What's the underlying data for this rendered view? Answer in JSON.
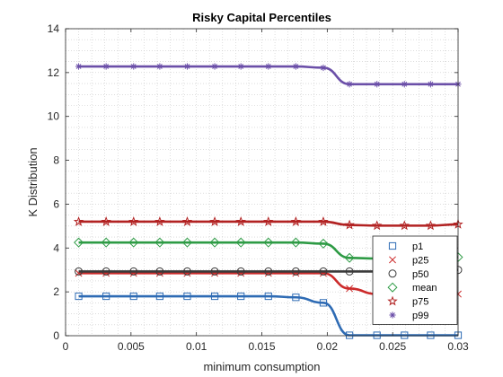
{
  "chart_data": {
    "type": "line",
    "title": "Risky Capital Percentiles",
    "xlabel": "minimum consumption",
    "ylabel": "K Distribution",
    "xlim": [
      0,
      0.03
    ],
    "ylim": [
      0,
      14
    ],
    "xticks": [
      0,
      0.005,
      0.01,
      0.015,
      0.02,
      0.025,
      0.03
    ],
    "xtick_labels": [
      "0",
      "0.005",
      "0.01",
      "0.015",
      "0.02",
      "0.025",
      "0.03"
    ],
    "yticks": [
      0,
      2,
      4,
      6,
      8,
      10,
      12,
      14
    ],
    "ytick_labels": [
      "0",
      "2",
      "4",
      "6",
      "8",
      "10",
      "12",
      "14"
    ],
    "grid": "minor-dotted",
    "legend_position": "lower-right",
    "x": [
      0.001,
      0.0031,
      0.0052,
      0.0072,
      0.0093,
      0.0114,
      0.0134,
      0.0155,
      0.0176,
      0.0197,
      0.0217,
      0.0238,
      0.0259,
      0.0279,
      0.03
    ],
    "series": [
      {
        "name": "p1",
        "color": "#2e6bb4",
        "marker": "square",
        "values": [
          1.8,
          1.8,
          1.8,
          1.8,
          1.8,
          1.8,
          1.8,
          1.8,
          1.75,
          1.5,
          0.02,
          0.02,
          0.02,
          0.02,
          0.02
        ]
      },
      {
        "name": "p25",
        "color": "#cc2a2a",
        "marker": "x",
        "values": [
          2.85,
          2.85,
          2.85,
          2.85,
          2.85,
          2.85,
          2.85,
          2.85,
          2.85,
          2.85,
          2.15,
          1.9,
          1.9,
          1.9,
          1.9
        ]
      },
      {
        "name": "p50",
        "color": "#3a3a3a",
        "marker": "circle",
        "values": [
          2.93,
          2.93,
          2.93,
          2.93,
          2.93,
          2.93,
          2.93,
          2.93,
          2.93,
          2.93,
          2.93,
          2.93,
          2.93,
          2.96,
          3.0
        ]
      },
      {
        "name": "mean",
        "color": "#2e9b45",
        "marker": "diamond",
        "values": [
          4.25,
          4.25,
          4.25,
          4.25,
          4.25,
          4.25,
          4.25,
          4.25,
          4.25,
          4.2,
          3.55,
          3.52,
          3.52,
          3.55,
          3.58
        ]
      },
      {
        "name": "p75",
        "color": "#b22222",
        "marker": "pentagram",
        "values": [
          5.2,
          5.2,
          5.2,
          5.2,
          5.2,
          5.2,
          5.2,
          5.2,
          5.2,
          5.2,
          5.05,
          5.02,
          5.02,
          5.02,
          5.08
        ]
      },
      {
        "name": "p99",
        "color": "#6b4fa8",
        "marker": "asterisk",
        "values": [
          12.28,
          12.28,
          12.28,
          12.28,
          12.28,
          12.28,
          12.28,
          12.28,
          12.28,
          12.22,
          11.47,
          11.47,
          11.47,
          11.47,
          11.47
        ]
      }
    ]
  }
}
